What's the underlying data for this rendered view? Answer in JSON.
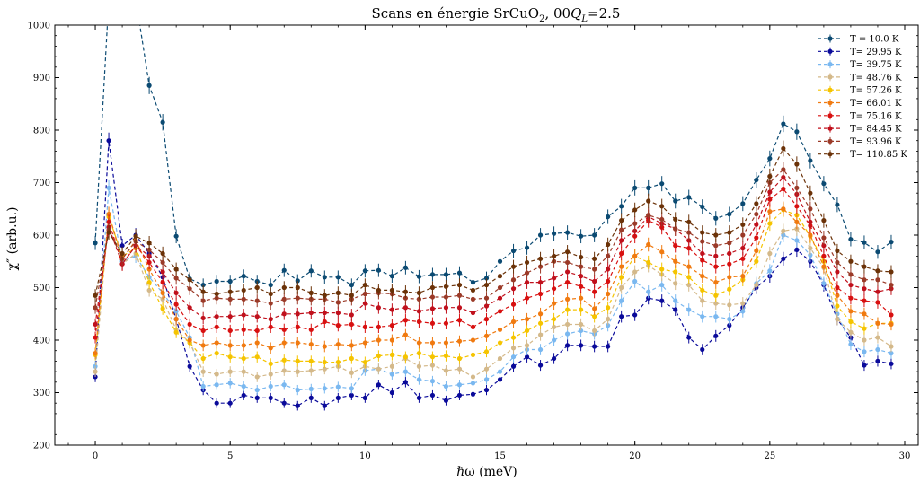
{
  "chart_data": {
    "type": "line",
    "title": "Scans en énergie SrCuO₂, 00Q_L=2.5",
    "title_parts": {
      "main": "Scans en énergie SrCuO",
      "sub2": "2",
      "mid": ", 00",
      "q": "Q",
      "qsub": "L",
      "tail": "=2.5"
    },
    "xlabel": "ℏω (meV)",
    "ylabel": "χ″ (arb.u.)",
    "xlim": [
      -1.5,
      30.5
    ],
    "ylim": [
      200,
      1000
    ],
    "xticks": [
      0,
      5,
      10,
      15,
      20,
      25,
      30
    ],
    "xtick_labels": [
      "0",
      "5",
      "10",
      "15",
      "20",
      "25",
      "30"
    ],
    "yticks": [
      200,
      300,
      400,
      500,
      600,
      700,
      800,
      900,
      1000
    ],
    "ytick_labels": [
      "200",
      "300",
      "400",
      "500",
      "600",
      "700",
      "800",
      "900",
      "1000"
    ],
    "grid": false,
    "legend_position": "top-right",
    "x": [
      0,
      0.5,
      1,
      1.5,
      2,
      2.5,
      3,
      3.5,
      4,
      4.5,
      5,
      5.5,
      6,
      6.5,
      7,
      7.5,
      8,
      8.5,
      9,
      9.5,
      10,
      10.5,
      11,
      11.5,
      12,
      12.5,
      13,
      13.5,
      14,
      14.5,
      15,
      15.5,
      16,
      16.5,
      17,
      17.5,
      18,
      18.5,
      19,
      19.5,
      20,
      20.5,
      21,
      21.5,
      22,
      22.5,
      23,
      23.5,
      24,
      24.5,
      25,
      25.5,
      26,
      26.5,
      27,
      27.5,
      28,
      28.5,
      29,
      29.5
    ],
    "series": [
      {
        "name": "T = 10.0 K",
        "color": "#0b4a72",
        "values": [
          585,
          1050,
          1050,
          1050,
          885,
          815,
          598,
          517,
          505,
          512,
          512,
          522,
          512,
          505,
          533,
          513,
          532,
          520,
          520,
          505,
          532,
          533,
          522,
          538,
          521,
          525,
          525,
          528,
          510,
          518,
          550,
          570,
          576,
          600,
          603,
          605,
          598,
          600,
          635,
          655,
          690,
          690,
          698,
          665,
          672,
          654,
          632,
          640,
          660,
          705,
          746,
          812,
          797,
          742,
          698,
          658,
          592,
          586,
          568,
          587
        ]
      },
      {
        "name": "T= 29.95 K",
        "color": "#0a0a9a",
        "values": [
          330,
          780,
          580,
          600,
          565,
          520,
          440,
          350,
          305,
          280,
          280,
          295,
          290,
          290,
          280,
          275,
          290,
          275,
          290,
          295,
          290,
          315,
          300,
          320,
          290,
          295,
          285,
          295,
          297,
          305,
          325,
          350,
          368,
          352,
          365,
          390,
          390,
          388,
          388,
          445,
          448,
          480,
          475,
          458,
          405,
          382,
          408,
          428,
          462,
          500,
          522,
          555,
          572,
          550,
          505,
          440,
          405,
          352,
          360,
          355
        ]
      },
      {
        "name": "T= 39.75 K",
        "color": "#7ab8f0",
        "values": [
          350,
          690,
          550,
          560,
          520,
          490,
          455,
          405,
          312,
          315,
          318,
          312,
          305,
          312,
          315,
          305,
          307,
          308,
          311,
          308,
          342,
          345,
          335,
          340,
          325,
          322,
          312,
          315,
          318,
          325,
          340,
          368,
          382,
          382,
          400,
          412,
          418,
          412,
          428,
          475,
          512,
          492,
          505,
          475,
          458,
          445,
          445,
          440,
          455,
          508,
          532,
          600,
          590,
          562,
          508,
          450,
          392,
          378,
          382,
          375
        ]
      },
      {
        "name": "T= 48.76 K",
        "color": "#d4b98a",
        "values": [
          340,
          640,
          545,
          565,
          495,
          478,
          420,
          395,
          340,
          335,
          340,
          340,
          330,
          335,
          342,
          340,
          342,
          345,
          350,
          338,
          350,
          345,
          350,
          365,
          350,
          352,
          342,
          345,
          330,
          345,
          365,
          385,
          390,
          410,
          425,
          430,
          430,
          418,
          440,
          500,
          530,
          542,
          525,
          508,
          505,
          475,
          470,
          467,
          470,
          505,
          565,
          608,
          612,
          575,
          538,
          440,
          415,
          400,
          405,
          388
        ]
      },
      {
        "name": "T= 57.26 K",
        "color": "#f5c400",
        "values": [
          372,
          635,
          560,
          575,
          510,
          460,
          415,
          395,
          365,
          375,
          368,
          365,
          368,
          355,
          362,
          360,
          360,
          358,
          358,
          365,
          358,
          370,
          372,
          368,
          375,
          368,
          370,
          365,
          372,
          378,
          395,
          405,
          418,
          432,
          440,
          458,
          458,
          445,
          462,
          520,
          560,
          548,
          535,
          530,
          520,
          495,
          485,
          497,
          515,
          550,
          622,
          648,
          638,
          598,
          550,
          465,
          435,
          422,
          432,
          432
        ]
      },
      {
        "name": "T= 66.01 K",
        "color": "#f07a10",
        "values": [
          375,
          640,
          555,
          590,
          535,
          490,
          440,
          400,
          390,
          395,
          390,
          390,
          395,
          385,
          395,
          395,
          392,
          388,
          392,
          390,
          395,
          400,
          400,
          410,
          395,
          395,
          395,
          398,
          400,
          408,
          420,
          435,
          440,
          450,
          470,
          478,
          480,
          460,
          488,
          540,
          560,
          582,
          568,
          550,
          540,
          522,
          510,
          520,
          522,
          570,
          645,
          650,
          625,
          600,
          540,
          485,
          455,
          450,
          432,
          430
        ]
      },
      {
        "name": "T= 75.16 K",
        "color": "#d81010",
        "values": [
          405,
          625,
          545,
          580,
          548,
          510,
          468,
          430,
          418,
          425,
          418,
          420,
          418,
          425,
          420,
          425,
          420,
          435,
          428,
          430,
          425,
          425,
          428,
          438,
          435,
          432,
          432,
          438,
          425,
          440,
          455,
          468,
          480,
          488,
          498,
          510,
          502,
          492,
          512,
          565,
          598,
          628,
          615,
          580,
          575,
          552,
          540,
          545,
          555,
          595,
          668,
          688,
          655,
          618,
          560,
          500,
          480,
          475,
          472,
          448
        ]
      },
      {
        "name": "T= 84.45 K",
        "color": "#c0101c",
        "values": [
          430,
          615,
          545,
          580,
          560,
          530,
          490,
          462,
          442,
          445,
          445,
          448,
          445,
          440,
          450,
          450,
          452,
          452,
          452,
          448,
          470,
          462,
          458,
          462,
          455,
          460,
          462,
          462,
          452,
          465,
          480,
          498,
          510,
          510,
          518,
          530,
          522,
          512,
          535,
          590,
          608,
          635,
          622,
          612,
          590,
          565,
          560,
          565,
          575,
          620,
          682,
          710,
          678,
          625,
          580,
          530,
          505,
          498,
          492,
          498
        ]
      },
      {
        "name": "T= 93.96 K",
        "color": "#9b3a28",
        "values": [
          462,
          610,
          555,
          588,
          572,
          548,
          518,
          498,
          475,
          480,
          478,
          478,
          475,
          470,
          478,
          480,
          478,
          478,
          472,
          478,
          488,
          490,
          488,
          480,
          478,
          482,
          482,
          485,
          478,
          480,
          500,
          515,
          528,
          540,
          550,
          548,
          540,
          535,
          560,
          610,
          622,
          638,
          630,
          612,
          605,
          588,
          580,
          585,
          600,
          640,
          700,
          725,
          690,
          650,
          595,
          548,
          525,
          515,
          515,
          505
        ]
      },
      {
        "name": "T= 110.85 K",
        "color": "#6b3208",
        "values": [
          485,
          605,
          565,
          598,
          585,
          565,
          535,
          515,
          492,
          488,
          492,
          495,
          500,
          488,
          500,
          500,
          490,
          485,
          490,
          485,
          505,
          495,
          495,
          492,
          490,
          500,
          502,
          505,
          495,
          505,
          522,
          540,
          548,
          555,
          560,
          568,
          558,
          555,
          582,
          628,
          648,
          665,
          655,
          630,
          625,
          605,
          600,
          605,
          620,
          660,
          712,
          765,
          735,
          680,
          628,
          570,
          550,
          540,
          532,
          530
        ]
      }
    ]
  }
}
